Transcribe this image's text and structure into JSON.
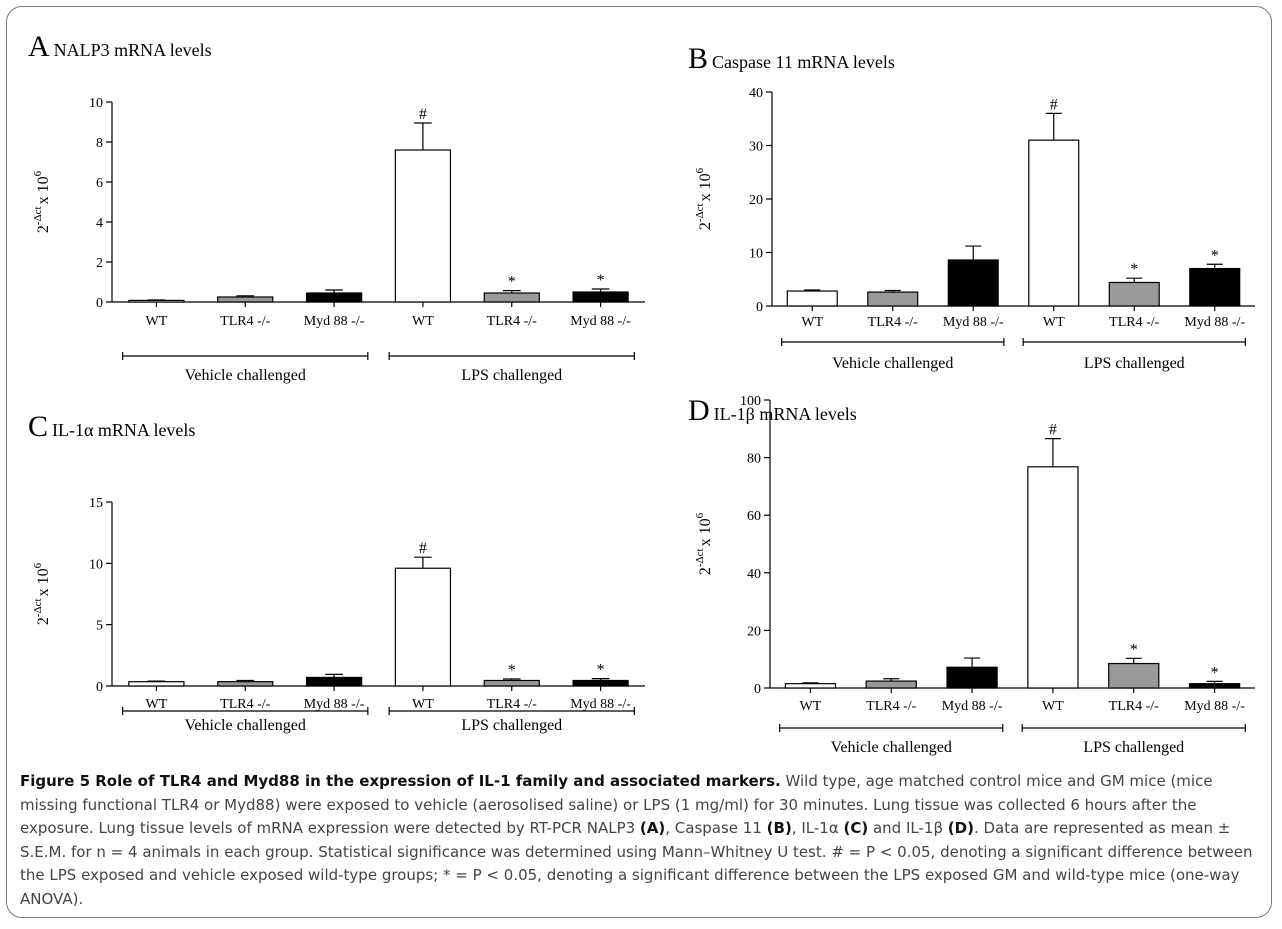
{
  "chart_data": [
    {
      "type": "bar",
      "panel_letter": "A",
      "title": "NALP3 mRNA levels",
      "ylabel_base": "2",
      "ylabel_exp": "-Δct",
      "ylabel_mult": "x 10",
      "ylabel_mult_exp": "6",
      "ylim": [
        0,
        10
      ],
      "yticks": [
        "0",
        "2",
        "4",
        "6",
        "8",
        "10"
      ],
      "ytick_values": [
        0,
        2,
        4,
        6,
        8,
        10
      ],
      "categories": [
        "WT",
        "TLR4 -/-",
        "Myd 88 -/-",
        "WT",
        "TLR4 -/-",
        "Myd 88 -/-"
      ],
      "values": [
        0.08,
        0.25,
        0.45,
        7.6,
        0.45,
        0.5
      ],
      "errors": [
        0.02,
        0.06,
        0.15,
        1.35,
        0.12,
        0.15
      ],
      "fills": [
        "#ffffff",
        "#999999",
        "#000000",
        "#ffffff",
        "#999999",
        "#000000"
      ],
      "markers": [
        "",
        "",
        "",
        "#",
        "*",
        "*"
      ],
      "groups": [
        "Vehicle challenged",
        "LPS challenged"
      ]
    },
    {
      "type": "bar",
      "panel_letter": "B",
      "title": "Caspase 11 mRNA levels",
      "ylabel_base": "2",
      "ylabel_exp": "-Δct",
      "ylabel_mult": "x 10",
      "ylabel_mult_exp": "6",
      "ylim": [
        0,
        40
      ],
      "yticks": [
        "0",
        "10",
        "20",
        "30",
        "40"
      ],
      "ytick_values": [
        0,
        10,
        20,
        30,
        40
      ],
      "categories": [
        "WT",
        "TLR4 -/-",
        "Myd 88 -/-",
        "WT",
        "TLR4 -/-",
        "Myd 88 -/-"
      ],
      "values": [
        2.8,
        2.6,
        8.6,
        31.0,
        4.4,
        7.0
      ],
      "errors": [
        0.2,
        0.3,
        2.6,
        5.0,
        0.8,
        0.8
      ],
      "fills": [
        "#ffffff",
        "#999999",
        "#000000",
        "#ffffff",
        "#999999",
        "#000000"
      ],
      "markers": [
        "",
        "",
        "",
        "#",
        "*",
        "*"
      ],
      "groups": [
        "Vehicle challenged",
        "LPS challenged"
      ]
    },
    {
      "type": "bar",
      "panel_letter": "C",
      "title": "IL-1α mRNA levels",
      "ylabel_base": "2",
      "ylabel_exp": "-Δct",
      "ylabel_mult": "x 10",
      "ylabel_mult_exp": "6",
      "ylim": [
        0,
        15
      ],
      "yticks": [
        "0",
        "5",
        "10",
        "15"
      ],
      "ytick_values": [
        0,
        5,
        10,
        15
      ],
      "categories": [
        "WT",
        "TLR4 -/-",
        "Myd 88 -/-",
        "WT",
        "TLR4 -/-",
        "Myd 88 -/-"
      ],
      "values": [
        0.35,
        0.35,
        0.7,
        9.6,
        0.45,
        0.45
      ],
      "errors": [
        0.05,
        0.1,
        0.25,
        0.9,
        0.12,
        0.15
      ],
      "fills": [
        "#ffffff",
        "#999999",
        "#000000",
        "#ffffff",
        "#999999",
        "#000000"
      ],
      "markers": [
        "",
        "",
        "",
        "#",
        "*",
        "*"
      ],
      "groups": [
        "Vehicle challenged",
        "LPS challenged"
      ]
    },
    {
      "type": "bar",
      "panel_letter": "D",
      "title": "IL-1β mRNA levels",
      "ylabel_base": "2",
      "ylabel_exp": "-Δct",
      "ylabel_mult": "x 10",
      "ylabel_mult_exp": "6",
      "ylim": [
        0,
        100
      ],
      "yticks": [
        "0",
        "20",
        "40",
        "60",
        "80",
        "100"
      ],
      "ytick_values": [
        0,
        20,
        40,
        60,
        80,
        100
      ],
      "categories": [
        "WT",
        "TLR4 -/-",
        "Myd 88 -/-",
        "WT",
        "TLR4 -/-",
        "Myd 88 -/-"
      ],
      "values": [
        1.5,
        2.4,
        7.2,
        76.8,
        8.5,
        1.5
      ],
      "errors": [
        0.3,
        0.8,
        3.2,
        9.8,
        1.8,
        0.8
      ],
      "fills": [
        "#ffffff",
        "#999999",
        "#000000",
        "#ffffff",
        "#999999",
        "#000000"
      ],
      "markers": [
        "",
        "",
        "",
        "#",
        "*",
        "*"
      ],
      "groups": [
        "Vehicle challenged",
        "LPS challenged"
      ]
    }
  ],
  "caption": {
    "title": "Figure 5 Role of TLR4 and Myd88 in the expression of IL-1 family and associated markers.",
    "p1": " Wild type, age matched control mice and GM mice (mice missing functional TLR4 or Myd88) were exposed to vehicle (aerosolised saline) or LPS (1 mg/ml) for 30 minutes. Lung tissue was collected 6 hours after the exposure. Lung tissue levels of mRNA expression were detected by RT-PCR NALP3 ",
    "refA": "(A)",
    "p2": ", Caspase 11 ",
    "refB": "(B)",
    "p3": ", IL-1α ",
    "refC": "(C)",
    "p4": " and IL-1β ",
    "refD": "(D)",
    "p5": ". Data are represented as mean ± S.E.M. for n = 4 animals in each group. Statistical significance was determined using Mann–Whitney U test. # = P < 0.05, denoting a significant difference between the LPS exposed and vehicle exposed wild-type groups; * = P < 0.05, denoting a significant difference between the LPS exposed GM and wild-type mice (one-way ANOVA)."
  }
}
